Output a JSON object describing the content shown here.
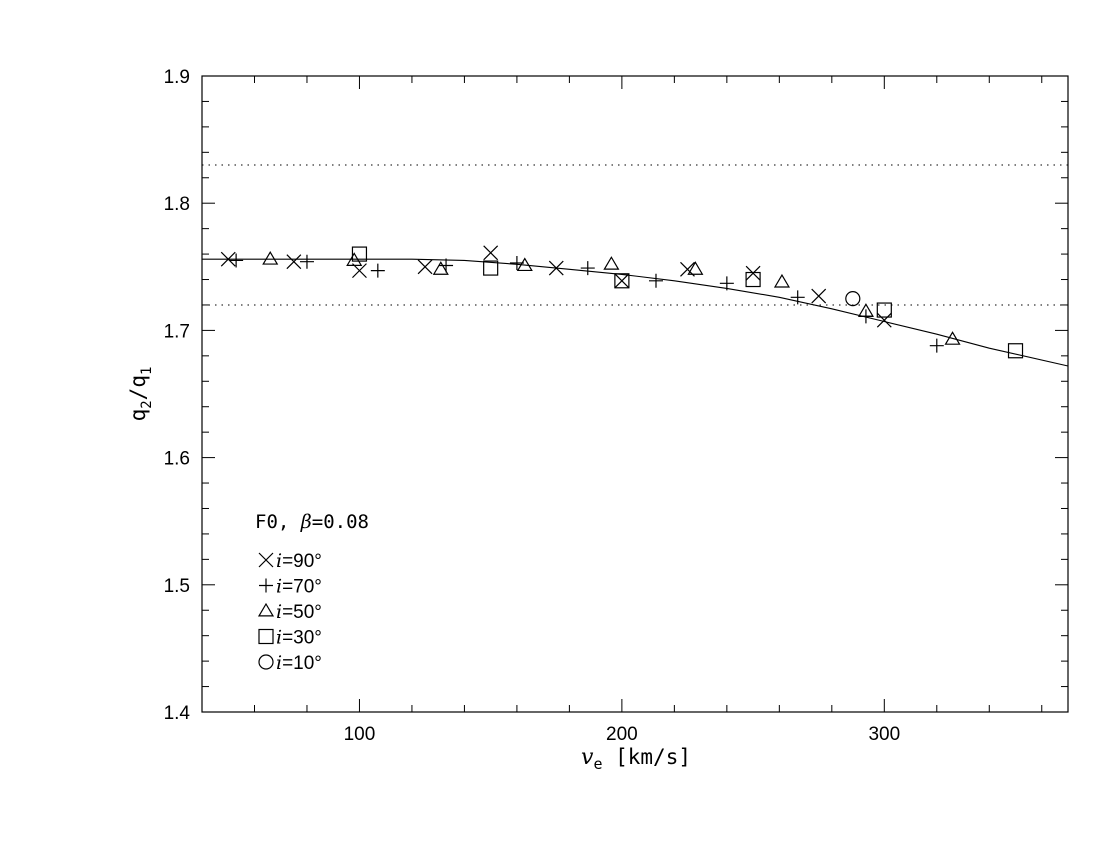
{
  "chart_data": {
    "type": "scatter",
    "xlim": [
      40,
      370
    ],
    "ylim": [
      1.4,
      1.9
    ],
    "x_ticks": [
      100,
      200,
      300
    ],
    "x_tick_labels": [
      "100",
      "200",
      "300"
    ],
    "y_ticks": [
      1.4,
      1.5,
      1.6,
      1.7,
      1.8,
      1.9
    ],
    "y_tick_labels": [
      "1.4",
      "1.5",
      "1.6",
      "1.7",
      "1.8",
      "1.9"
    ],
    "xlabel": {
      "main": "v",
      "sub": "e",
      "unit": "[km/s]"
    },
    "ylabel": {
      "q1": "q",
      "s1": "2",
      "slash": "/",
      "q2": "q",
      "s2": "1"
    },
    "grid": false,
    "legend_position": "lower-left",
    "legend_title": {
      "prefix": "F0,",
      "symbol": "β",
      "value": "=0.08"
    },
    "reference_lines": [
      1.83,
      1.72
    ],
    "fit_curve": {
      "x": [
        40,
        60,
        80,
        100,
        120,
        140,
        160,
        180,
        200,
        220,
        240,
        260,
        280,
        300,
        320,
        340,
        370
      ],
      "y": [
        1.756,
        1.756,
        1.756,
        1.756,
        1.756,
        1.755,
        1.752,
        1.748,
        1.744,
        1.739,
        1.733,
        1.726,
        1.717,
        1.707,
        1.697,
        1.686,
        1.672
      ]
    },
    "series": [
      {
        "name_prefix": "i",
        "name_value": "=90°",
        "marker": "x",
        "x": [
          50,
          75,
          100,
          125,
          150,
          175,
          200,
          225,
          250,
          275,
          300
        ],
        "y": [
          1.756,
          1.754,
          1.747,
          1.75,
          1.761,
          1.749,
          1.739,
          1.748,
          1.745,
          1.727,
          1.708
        ]
      },
      {
        "name_prefix": "i",
        "name_value": "=70°",
        "marker": "plus",
        "x": [
          53,
          80,
          107,
          133,
          160,
          187,
          213,
          240,
          267,
          293,
          320
        ],
        "y": [
          1.755,
          1.754,
          1.747,
          1.751,
          1.753,
          1.749,
          1.739,
          1.737,
          1.726,
          1.711,
          1.688
        ]
      },
      {
        "name_prefix": "i",
        "name_value": "=50°",
        "marker": "triangle",
        "x": [
          66,
          98,
          131,
          163,
          196,
          228,
          261,
          293,
          326
        ],
        "y": [
          1.756,
          1.755,
          1.748,
          1.751,
          1.752,
          1.748,
          1.738,
          1.715,
          1.693
        ]
      },
      {
        "name_prefix": "i",
        "name_value": "=30°",
        "marker": "square",
        "x": [
          100,
          150,
          200,
          250,
          300,
          350
        ],
        "y": [
          1.76,
          1.749,
          1.739,
          1.74,
          1.716,
          1.684
        ]
      },
      {
        "name_prefix": "i",
        "name_value": "=10°",
        "marker": "circle",
        "x": [
          288
        ],
        "y": [
          1.725
        ]
      }
    ]
  }
}
